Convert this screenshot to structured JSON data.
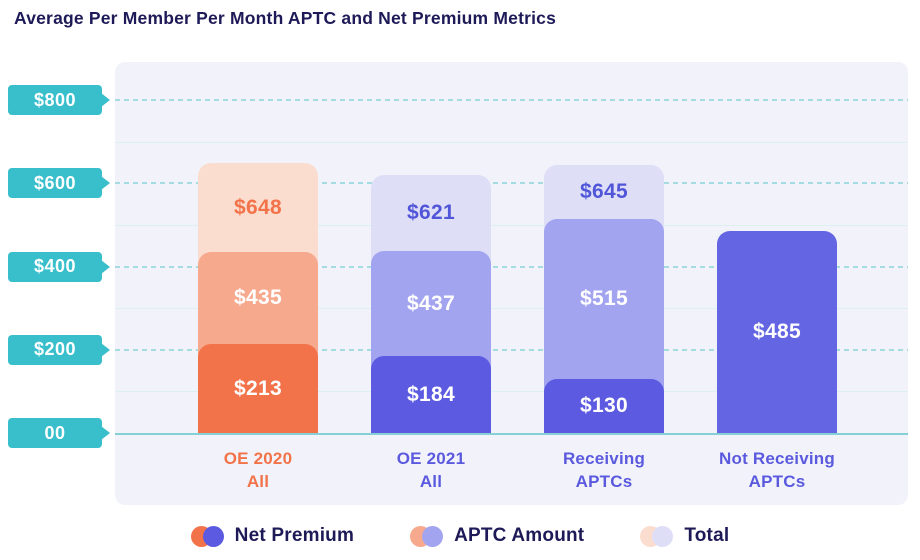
{
  "title": "Average Per Member Per Month APTC and Net Premium Metrics",
  "colors": {
    "title_text": "#1D1A57",
    "page_background": "#FFFFFF",
    "plot_background": "#F2F3FA",
    "axis_badge": "#38BFCB",
    "axis_badge_text": "#FFFFFF",
    "gridline_major": "#A5DCE0",
    "gridline_minor": "#DCEFF1",
    "baseline": "#85CFD6",
    "legend_text": "#1D1A57",
    "palettes": {
      "orange": {
        "net": "#F2734A",
        "aptc": "#F7A98E",
        "total": "#FBDDCF",
        "net_label_color": "#FFFFFF",
        "aptc_label_color": "#FFFFFF",
        "total_label_color": "#F2734A",
        "axis_label_color": "#F2734A"
      },
      "indigo": {
        "net": "#5B5AE0",
        "aptc": "#A3A4F0",
        "total": "#DEDFF7",
        "net_label_color": "#FFFFFF",
        "aptc_label_color": "#FFFFFF",
        "total_label_color": "#5156D8",
        "axis_label_color": "#5B5ADF"
      },
      "indigo_light": {
        "net": "#6365E3",
        "net_label_color": "#FFFFFF",
        "axis_label_color": "#5B5ADF"
      }
    }
  },
  "chart_data": {
    "type": "bar",
    "subtype": "layered-absolute-stack",
    "title": "Average Per Member Per Month APTC and Net Premium Metrics",
    "xlabel": "",
    "ylabel": "",
    "ylim": [
      0,
      800
    ],
    "grid": true,
    "gridline_step": 100,
    "legend_position": "bottom",
    "y_axis": {
      "ticks": [
        {
          "label": "$800",
          "value": 800
        },
        {
          "label": "$600",
          "value": 600
        },
        {
          "label": "$400",
          "value": 400
        },
        {
          "label": "$200",
          "value": 200
        },
        {
          "label": "00",
          "value": 0
        }
      ]
    },
    "categories": [
      "OE 2020 All",
      "OE 2021 All",
      "Receiving APTCs",
      "Not Receiving APTCs"
    ],
    "groups": [
      {
        "name": "OE 2020 All",
        "label_lines": [
          "OE 2020",
          "All"
        ],
        "palette": "orange",
        "metrics": {
          "net_premium": {
            "value": 213,
            "label": "$213"
          },
          "aptc_amount": {
            "value": 435,
            "label": "$435"
          },
          "total": {
            "value": 648,
            "label": "$648"
          }
        }
      },
      {
        "name": "OE 2021 All",
        "label_lines": [
          "OE 2021",
          "All"
        ],
        "palette": "indigo",
        "metrics": {
          "net_premium": {
            "value": 184,
            "label": "$184"
          },
          "aptc_amount": {
            "value": 437,
            "label": "$437"
          },
          "total": {
            "value": 621,
            "label": "$621"
          }
        }
      },
      {
        "name": "Receiving APTCs",
        "label_lines": [
          "Receiving",
          "APTCs"
        ],
        "palette": "indigo",
        "metrics": {
          "net_premium": {
            "value": 130,
            "label": "$130"
          },
          "aptc_amount": {
            "value": 515,
            "label": "$515"
          },
          "total": {
            "value": 645,
            "label": "$645"
          }
        }
      },
      {
        "name": "Not Receiving APTCs",
        "label_lines": [
          "Not Receiving",
          "APTCs"
        ],
        "palette": "indigo_light",
        "metrics": {
          "net_premium": {
            "value": 485,
            "label": "$485"
          }
        }
      }
    ],
    "legend": [
      {
        "label": "Net Premium",
        "dot_colors": [
          "#F2734A",
          "#5B5AE0"
        ]
      },
      {
        "label": "APTC Amount",
        "dot_colors": [
          "#F7A98E",
          "#A3A4F0"
        ]
      },
      {
        "label": "Total",
        "dot_colors": [
          "#FBDDCF",
          "#DEDFF7"
        ]
      }
    ]
  }
}
